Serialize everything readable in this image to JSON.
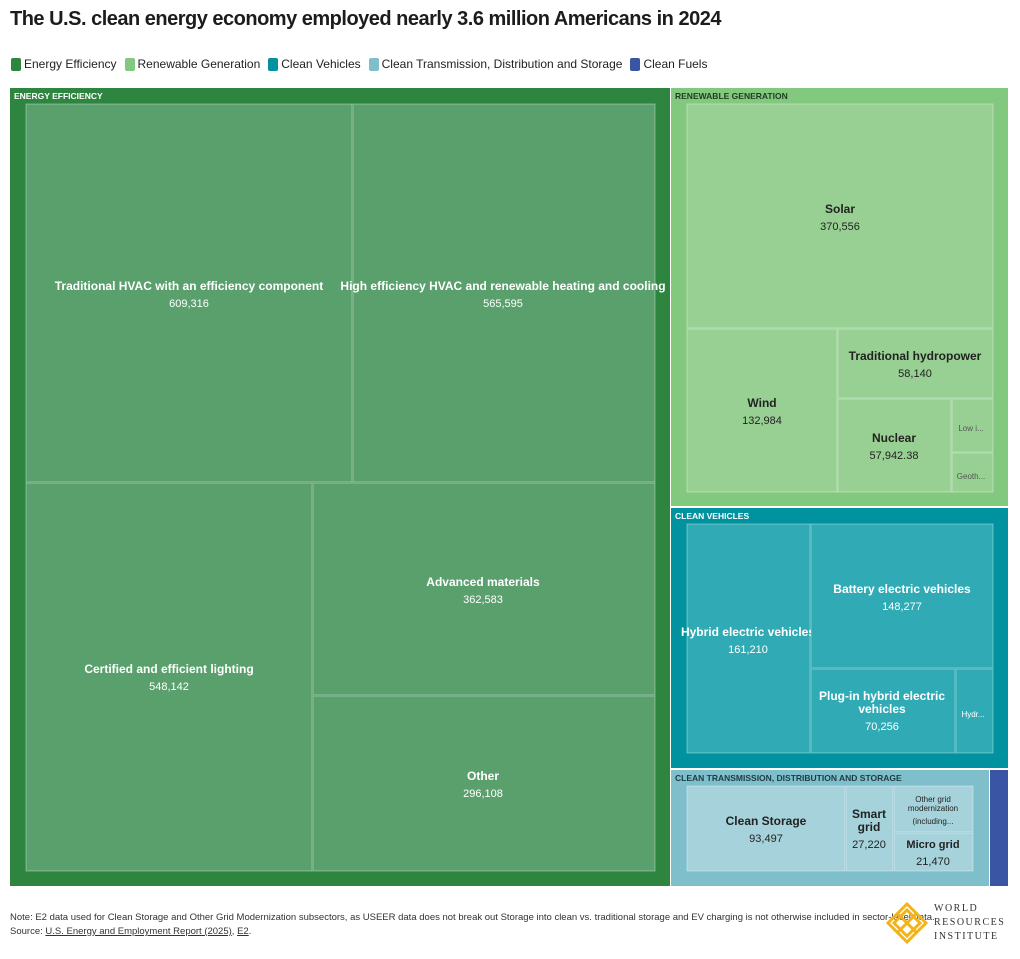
{
  "title": "The U.S. clean energy economy employed nearly 3.6 million Americans in 2024",
  "legend": [
    {
      "label": "Energy Efficiency",
      "color": "#2e8540"
    },
    {
      "label": "Renewable Generation",
      "color": "#82c87e"
    },
    {
      "label": "Clean Vehicles",
      "color": "#00929f"
    },
    {
      "label": "Clean Transmission, Distribution and Storage",
      "color": "#7ebfcb"
    },
    {
      "label": "Clean Fuels",
      "color": "#3a55a3"
    }
  ],
  "chart_data": {
    "type": "treemap",
    "title": "The U.S. clean energy economy employed nearly 3.6 million Americans in 2024",
    "groups": [
      {
        "name": "ENERGY EFFICIENCY",
        "color": "#2e8540",
        "items": [
          {
            "name": "Traditional HVAC with an efficiency component",
            "value_label": "609,316",
            "value": 609316
          },
          {
            "name": "High efficiency HVAC and renewable heating and cooling",
            "value_label": "565,595",
            "value": 565595
          },
          {
            "name": "Certified and efficient lighting",
            "value_label": "548,142",
            "value": 548142
          },
          {
            "name": "Advanced materials",
            "value_label": "362,583",
            "value": 362583
          },
          {
            "name": "Other",
            "value_label": "296,108",
            "value": 296108
          }
        ]
      },
      {
        "name": "RENEWABLE GENERATION",
        "color": "#82c87e",
        "items": [
          {
            "name": "Solar",
            "value_label": "370,556",
            "value": 370556
          },
          {
            "name": "Wind",
            "value_label": "132,984",
            "value": 132984
          },
          {
            "name": "Traditional hydropower",
            "value_label": "58,140",
            "value": 58140
          },
          {
            "name": "Nuclear",
            "value_label": "57,942.38",
            "value": 57942.38
          },
          {
            "name": "Low i...",
            "value_label": "",
            "value": null
          },
          {
            "name": "Geoth...",
            "value_label": "",
            "value": null
          }
        ]
      },
      {
        "name": "CLEAN VEHICLES",
        "color": "#00929f",
        "items": [
          {
            "name": "Hybrid electric vehicles",
            "value_label": "161,210",
            "value": 161210
          },
          {
            "name": "Battery electric vehicles",
            "value_label": "148,277",
            "value": 148277
          },
          {
            "name": "Plug-in hybrid electric vehicles",
            "value_label": "70,256",
            "value": 70256
          },
          {
            "name": "Hydr...",
            "value_label": "",
            "value": null
          }
        ]
      },
      {
        "name": "CLEAN TRANSMISSION, DISTRIBUTION AND STORAGE",
        "color": "#7ebfcb",
        "items": [
          {
            "name": "Clean Storage",
            "value_label": "93,497",
            "value": 93497
          },
          {
            "name": "Smart grid",
            "value_label": "27,220",
            "value": 27220
          },
          {
            "name": "Other grid modernization",
            "value_label": "(including...",
            "value": null
          },
          {
            "name": "Micro grid",
            "value_label": "21,470",
            "value": 21470
          }
        ]
      },
      {
        "name": "",
        "color": "#3a55a3",
        "items": []
      }
    ]
  },
  "footer": {
    "note": "Note: E2 data used for Clean Storage and Other Grid Modernization subsectors, as USEER data does not break out Storage into clean vs. traditional storage and EV charging is not otherwise included in sector-level data.",
    "source_prefix": "Source: ",
    "source_link1": "U.S. Energy and Employment Report (2025)",
    "source_sep": ", ",
    "source_link2": "E2",
    "source_end": "."
  },
  "logo": {
    "line1": "WORLD",
    "line2": "RESOURCES",
    "line3": "INSTITUTE"
  }
}
